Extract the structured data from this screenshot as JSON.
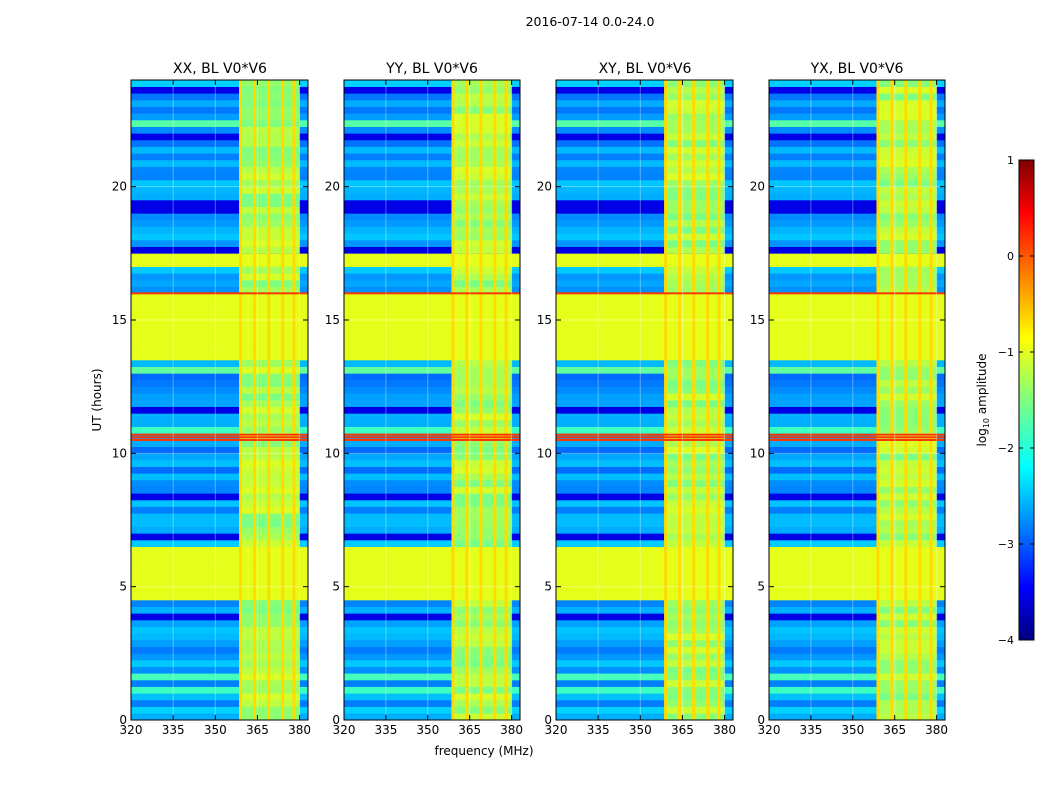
{
  "chart_data": {
    "type": "heatmap",
    "suptitle": "2016-07-14 0.0-24.0",
    "xlabel": "frequency (MHz)",
    "ylabel": "UT (hours)",
    "xlim": [
      320,
      383
    ],
    "ylim": [
      0,
      24
    ],
    "xticks": [
      320,
      335,
      350,
      365,
      380
    ],
    "yticks": [
      0,
      5,
      10,
      15,
      20
    ],
    "panels": [
      {
        "title": "XX, BL V0*V6",
        "show_ylabel": true,
        "show_xlabel": false
      },
      {
        "title": "YY, BL V0*V6",
        "show_ylabel": false,
        "show_xlabel": true
      },
      {
        "title": "XY, BL V0*V6",
        "show_ylabel": false,
        "show_xlabel": false
      },
      {
        "title": "YX, BL V0*V6",
        "show_ylabel": false,
        "show_xlabel": false
      }
    ],
    "colorbar": {
      "label": "log10 amplitude",
      "label_main": "log",
      "label_sub": "10",
      "label_rest": " amplitude",
      "range": [
        -4,
        1
      ],
      "ticks": [
        "1",
        "0",
        "−1",
        "−2",
        "−3",
        "−4"
      ],
      "colormap": "jet"
    },
    "features": {
      "rfi_band_MHz": [
        359,
        380
      ],
      "rfi_channels_MHz": [
        359,
        364,
        369,
        374,
        378
      ],
      "flagged_time_blocks_h": [
        [
          13.5,
          16.0
        ],
        [
          4.4,
          6.5
        ],
        [
          16.9,
          17.5
        ]
      ],
      "strong_time_lines_h": [
        16.0,
        10.5,
        10.6,
        10.7
      ],
      "typical_log_amplitude": -2.6
    }
  }
}
